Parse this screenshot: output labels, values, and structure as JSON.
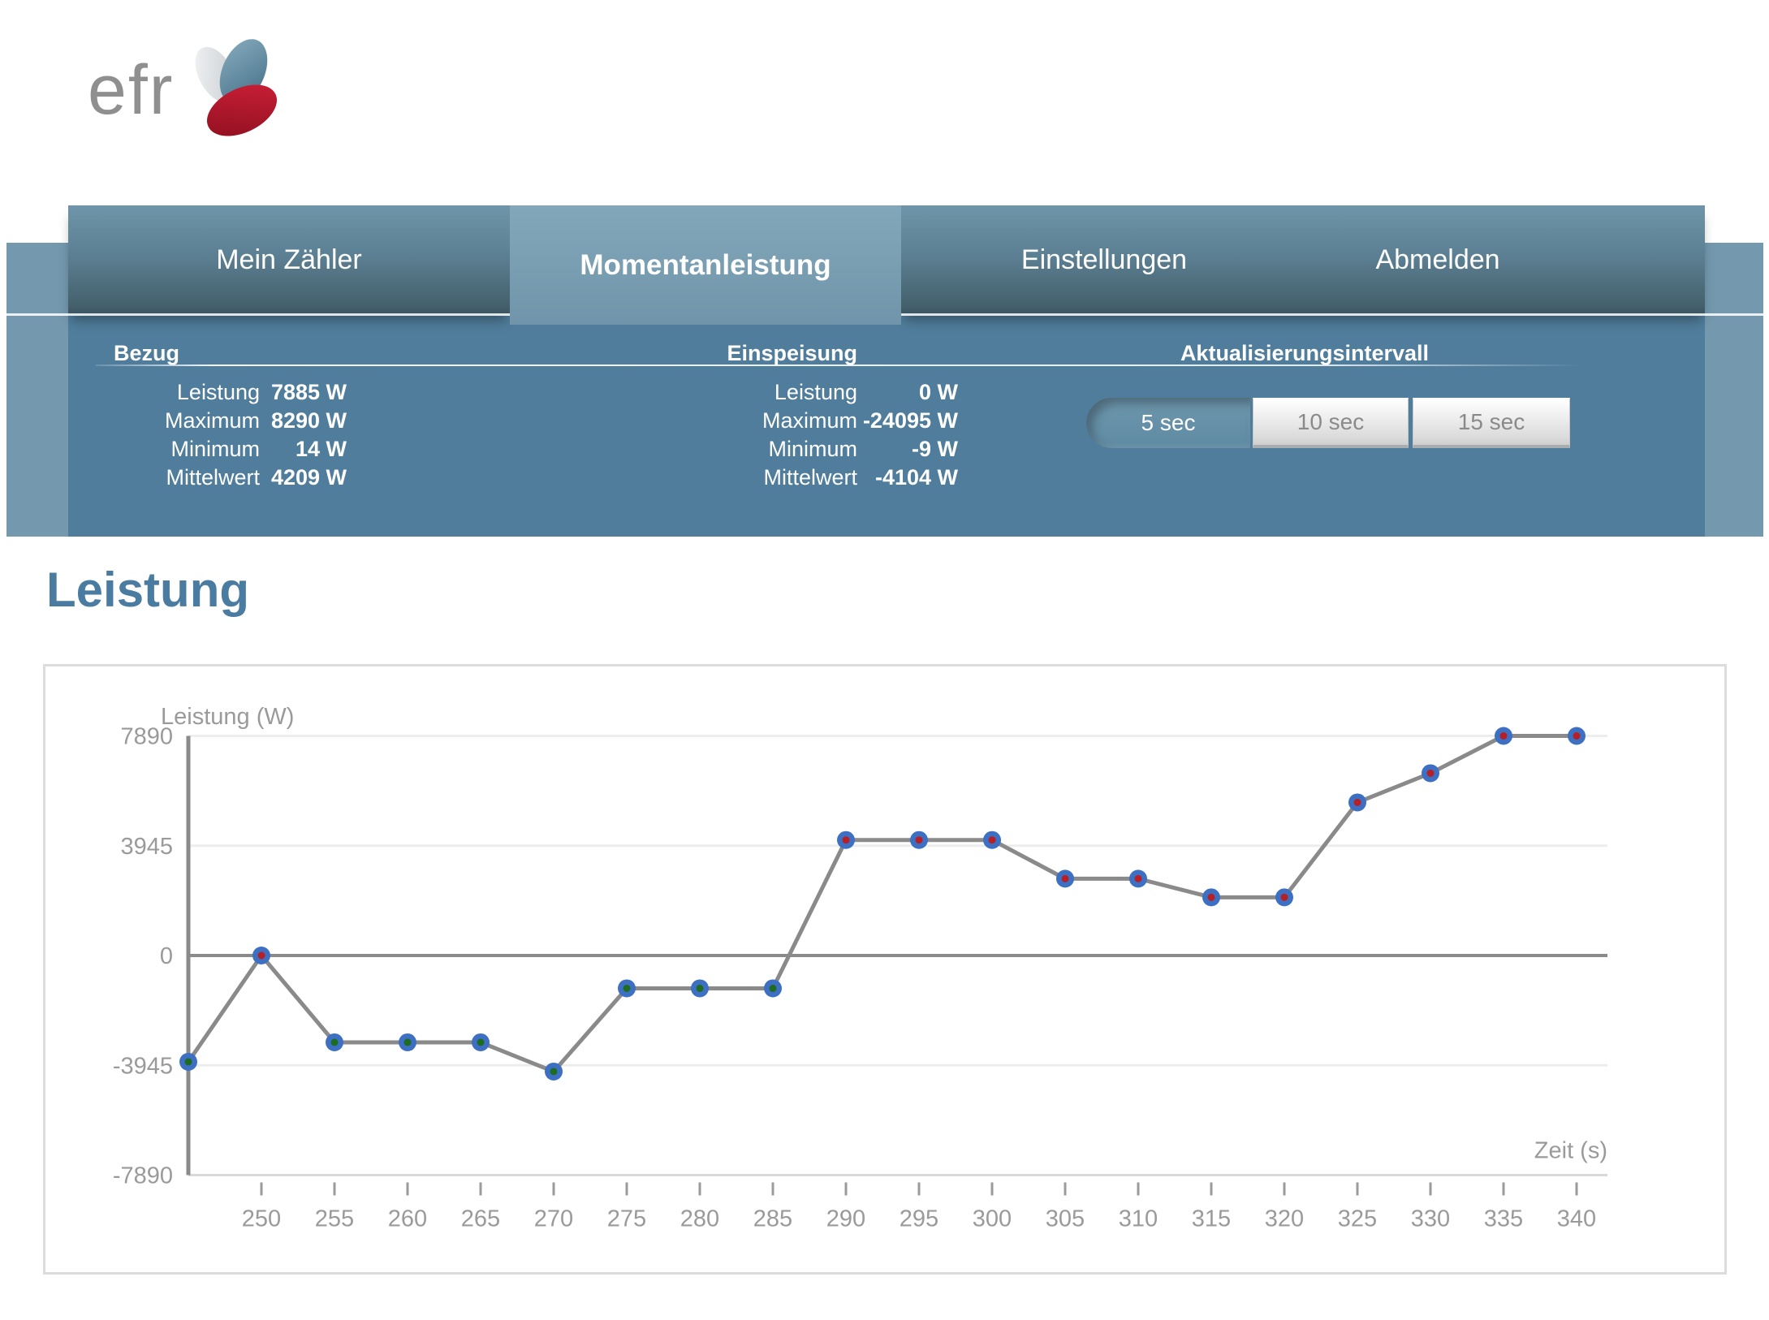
{
  "brand": {
    "logo_text": "efr"
  },
  "nav": {
    "tabs": [
      {
        "label": "Mein Zähler",
        "active": false
      },
      {
        "label": "Momentanleistung",
        "active": true
      },
      {
        "label": "Einstellungen",
        "active": false
      },
      {
        "label": "Abmelden",
        "active": false
      }
    ]
  },
  "stats": {
    "bezug": {
      "title": "Bezug",
      "rows": [
        {
          "label": "Leistung",
          "value": "7885 W"
        },
        {
          "label": "Maximum",
          "value": "8290 W"
        },
        {
          "label": "Minimum",
          "value": "14 W"
        },
        {
          "label": "Mittelwert",
          "value": "4209 W"
        }
      ]
    },
    "einspeisung": {
      "title": "Einspeisung",
      "rows": [
        {
          "label": "Leistung",
          "value": "0 W"
        },
        {
          "label": "Maximum",
          "value": "-24095 W"
        },
        {
          "label": "Minimum",
          "value": "-9 W"
        },
        {
          "label": "Mittelwert",
          "value": "-4104 W"
        }
      ]
    },
    "interval": {
      "title": "Aktualisierungsintervall",
      "options": [
        {
          "label": "5 sec",
          "selected": true
        },
        {
          "label": "10 sec",
          "selected": false
        },
        {
          "label": "15 sec",
          "selected": false
        }
      ]
    }
  },
  "page_title": "Leistung",
  "theme": {
    "band": "#7499ae",
    "panel": "#4f7d9b",
    "active_tab": "#7ba0b5",
    "title_blue": "#4a7ba1",
    "logo_red": "#b5182c",
    "logo_blue": "#5b8ba3"
  },
  "chart_data": {
    "type": "line",
    "ylabel": "Leistung (W)",
    "xlabel": "Zeit (s)",
    "x": [
      245,
      250,
      255,
      260,
      265,
      270,
      275,
      280,
      285,
      290,
      295,
      300,
      305,
      310,
      315,
      320,
      325,
      330,
      335,
      340
    ],
    "values": [
      -3820,
      0,
      -3120,
      -3120,
      -3120,
      -4170,
      -1180,
      -1180,
      -1180,
      4150,
      4150,
      4150,
      2760,
      2760,
      2090,
      2090,
      5500,
      6550,
      7890,
      7890
    ],
    "centers": [
      "green",
      "red",
      "green",
      "green",
      "green",
      "green",
      "green",
      "green",
      "green",
      "red",
      "red",
      "red",
      "red",
      "red",
      "red",
      "red",
      "red",
      "red",
      "red",
      "red"
    ],
    "xticks": [
      250,
      255,
      260,
      265,
      270,
      275,
      280,
      285,
      290,
      295,
      300,
      305,
      310,
      315,
      320,
      325,
      330,
      335,
      340
    ],
    "yticks": [
      7890,
      3945,
      0,
      -3945,
      -7890
    ],
    "xlim": [
      245,
      340
    ],
    "ylim": [
      -7890,
      7890
    ],
    "grid": true,
    "legend": "none",
    "colors": {
      "line": "#8a8a8a",
      "axis": "#8a8a8a",
      "grid": "#ededed",
      "baseline": "#d9d9d9",
      "marker_outer": "#3d70c2",
      "marker_red": "#b42025",
      "marker_green": "#1e6b22",
      "text": "#9a9a9a"
    }
  }
}
